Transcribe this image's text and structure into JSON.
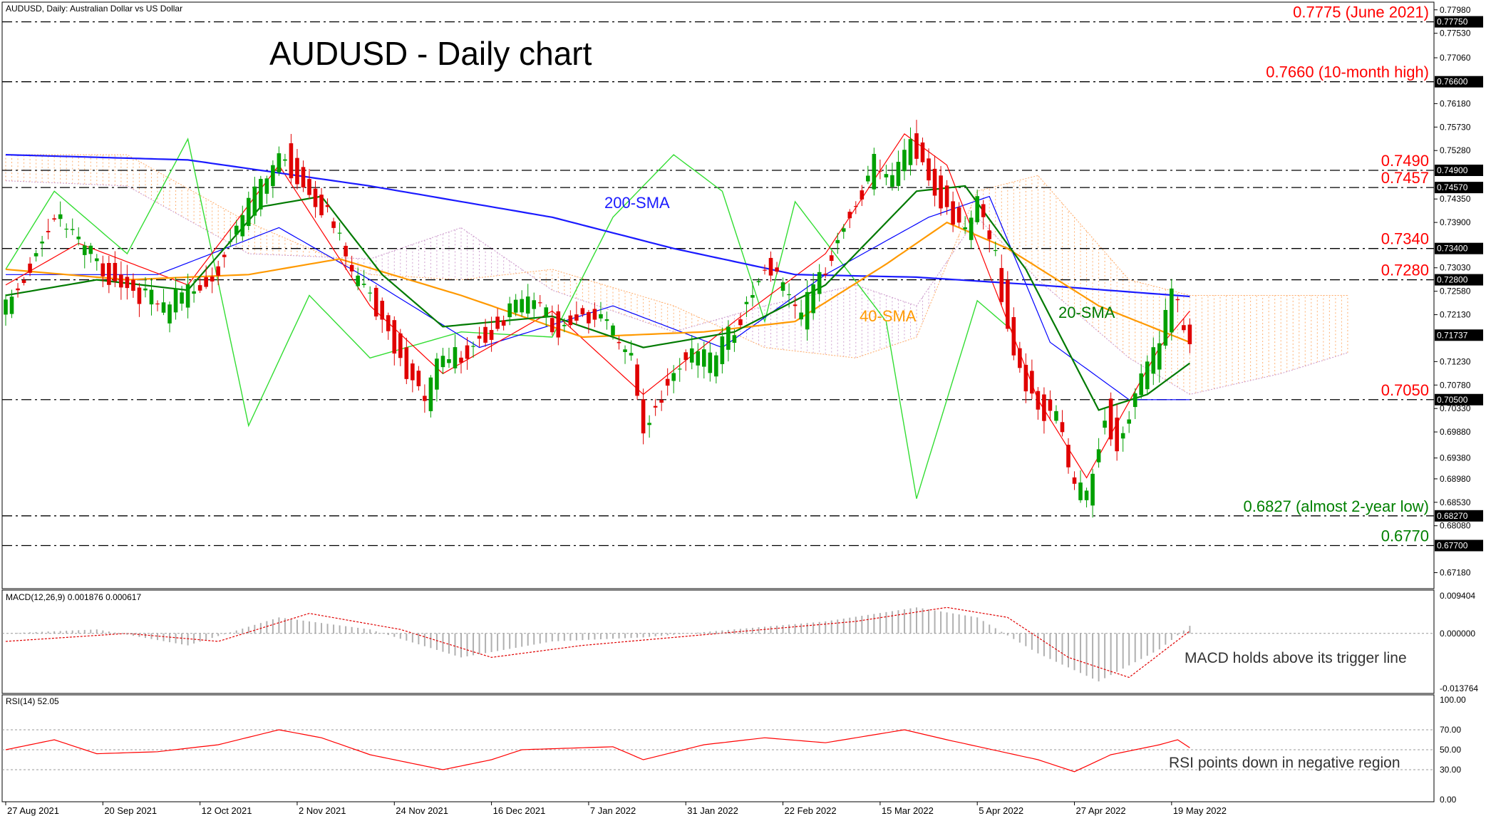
{
  "window": {
    "symbol_line": "AUDUSD, Daily:  Australian Dollar vs US Dollar"
  },
  "title": "AUDUSD - Daily chart",
  "colors": {
    "bull_candle": "#00a000",
    "bear_candle": "#e00000",
    "sma200": "#1a1aff",
    "sma40": "#ff9900",
    "sma20": "#007a00",
    "tenkan": "#ff0000",
    "kijun": "#0000ff",
    "chikou": "#33dd33",
    "cloud_bull": "#cc99cc",
    "cloud_bear": "#ffaa66",
    "level_red": "#ff0000",
    "level_green": "#008000",
    "price_tag": "#000000"
  },
  "price_axis": {
    "min": 0.669,
    "max": 0.781,
    "ticks": [
      "0.77980",
      "0.77750",
      "0.77530",
      "0.77060",
      "0.76600",
      "0.76180",
      "0.75730",
      "0.75280",
      "0.74900",
      "0.74570",
      "0.74350",
      "0.73900",
      "0.73400",
      "0.73030",
      "0.72800",
      "0.72580",
      "0.72130",
      "0.71737",
      "0.71230",
      "0.70780",
      "0.70500",
      "0.70330",
      "0.69880",
      "0.69380",
      "0.68980",
      "0.68530",
      "0.68270",
      "0.68080",
      "0.67700",
      "0.67180"
    ],
    "current_price": "0.71737"
  },
  "levels": [
    {
      "value": 0.7775,
      "label": "0.7775 (June 2021)",
      "tag": "0.77750",
      "color": "red"
    },
    {
      "value": 0.766,
      "label": "0.7660 (10-month high)",
      "tag": "0.76600",
      "color": "red"
    },
    {
      "value": 0.749,
      "label": "0.7490",
      "tag": "0.74900",
      "color": "red"
    },
    {
      "value": 0.7457,
      "label": "0.7457",
      "tag": "0.74570",
      "color": "red"
    },
    {
      "value": 0.734,
      "label": "0.7340",
      "tag": "0.73400",
      "color": "red"
    },
    {
      "value": 0.728,
      "label": "0.7280",
      "tag": "0.72800",
      "color": "red"
    },
    {
      "value": 0.705,
      "label": "0.7050",
      "tag": "0.70500",
      "color": "red"
    },
    {
      "value": 0.6827,
      "label": "0.6827 (almost 2-year low)",
      "tag": "0.68270",
      "color": "green"
    },
    {
      "value": 0.677,
      "label": "0.6770",
      "tag": "0.67700",
      "color": "green"
    }
  ],
  "annotations": {
    "sma200": "200-SMA",
    "sma40": "40-SMA",
    "sma20": "20-SMA"
  },
  "x_axis": {
    "labels": [
      "27 Aug 2021",
      "20 Sep 2021",
      "12 Oct 2021",
      "2 Nov 2021",
      "24 Nov 2021",
      "16 Dec 2021",
      "7 Jan 2022",
      "31 Jan 2022",
      "22 Feb 2022",
      "15 Mar 2022",
      "5 Apr 2022",
      "27 Apr 2022",
      "19 May 2022"
    ]
  },
  "macd": {
    "header": "MACD(12,26,9) 0.001876 0.000617",
    "axis": {
      "min": -0.013764,
      "max": 0.009404
    },
    "ticks": [
      "0.009404",
      "0.000000",
      "-0.013764"
    ],
    "annotation": "MACD holds above its trigger line"
  },
  "rsi": {
    "header": "RSI(14) 52.05",
    "axis": {
      "min": 0,
      "max": 100
    },
    "ticks": [
      "100.00",
      "70.00",
      "50.00",
      "30.00",
      "0.00"
    ],
    "annotation": "RSI points down in negative region"
  },
  "chart_data": {
    "type": "candlestick",
    "symbol": "AUDUSD",
    "timeframe": "Daily",
    "n_bars": 196,
    "close_anchors": [
      [
        0,
        0.725
      ],
      [
        3,
        0.73
      ],
      [
        8,
        0.742
      ],
      [
        12,
        0.736
      ],
      [
        18,
        0.729
      ],
      [
        22,
        0.727
      ],
      [
        26,
        0.723
      ],
      [
        30,
        0.7275
      ],
      [
        34,
        0.73
      ],
      [
        38,
        0.739
      ],
      [
        42,
        0.747
      ],
      [
        46,
        0.753
      ],
      [
        49,
        0.747
      ],
      [
        53,
        0.742
      ],
      [
        57,
        0.73
      ],
      [
        61,
        0.724
      ],
      [
        65,
        0.715
      ],
      [
        69,
        0.705
      ],
      [
        71,
        0.713
      ],
      [
        75,
        0.715
      ],
      [
        79,
        0.719
      ],
      [
        83,
        0.723
      ],
      [
        87,
        0.725
      ],
      [
        91,
        0.72
      ],
      [
        95,
        0.723
      ],
      [
        99,
        0.721
      ],
      [
        103,
        0.713
      ],
      [
        105,
        0.7
      ],
      [
        108,
        0.708
      ],
      [
        112,
        0.715
      ],
      [
        116,
        0.713
      ],
      [
        119,
        0.718
      ],
      [
        122,
        0.725
      ],
      [
        125,
        0.732
      ],
      [
        128,
        0.728
      ],
      [
        131,
        0.722
      ],
      [
        134,
        0.73
      ],
      [
        137,
        0.738
      ],
      [
        140,
        0.745
      ],
      [
        143,
        0.751
      ],
      [
        146,
        0.748
      ],
      [
        149,
        0.756
      ],
      [
        151,
        0.752
      ],
      [
        154,
        0.745
      ],
      [
        158,
        0.738
      ],
      [
        160,
        0.744
      ],
      [
        163,
        0.733
      ],
      [
        166,
        0.715
      ],
      [
        170,
        0.705
      ],
      [
        173,
        0.703
      ],
      [
        176,
        0.688
      ],
      [
        178,
        0.688
      ],
      [
        181,
        0.704
      ],
      [
        183,
        0.697
      ],
      [
        186,
        0.708
      ],
      [
        188,
        0.712
      ],
      [
        190,
        0.717
      ],
      [
        192,
        0.726
      ],
      [
        194,
        0.72
      ],
      [
        195,
        0.7174
      ]
    ],
    "sma200_anchors": [
      [
        0,
        0.752
      ],
      [
        30,
        0.751
      ],
      [
        60,
        0.746
      ],
      [
        90,
        0.74
      ],
      [
        110,
        0.734
      ],
      [
        130,
        0.729
      ],
      [
        150,
        0.7285
      ],
      [
        170,
        0.727
      ],
      [
        195,
        0.7248
      ]
    ],
    "sma40_anchors": [
      [
        0,
        0.73
      ],
      [
        20,
        0.728
      ],
      [
        40,
        0.729
      ],
      [
        55,
        0.732
      ],
      [
        75,
        0.725
      ],
      [
        95,
        0.717
      ],
      [
        115,
        0.718
      ],
      [
        130,
        0.72
      ],
      [
        145,
        0.731
      ],
      [
        155,
        0.739
      ],
      [
        165,
        0.734
      ],
      [
        180,
        0.723
      ],
      [
        195,
        0.716
      ]
    ],
    "sma20_anchors": [
      [
        0,
        0.725
      ],
      [
        15,
        0.728
      ],
      [
        30,
        0.726
      ],
      [
        42,
        0.742
      ],
      [
        52,
        0.744
      ],
      [
        62,
        0.729
      ],
      [
        72,
        0.719
      ],
      [
        90,
        0.721
      ],
      [
        105,
        0.715
      ],
      [
        120,
        0.718
      ],
      [
        135,
        0.727
      ],
      [
        150,
        0.745
      ],
      [
        158,
        0.746
      ],
      [
        168,
        0.73
      ],
      [
        180,
        0.703
      ],
      [
        188,
        0.706
      ],
      [
        195,
        0.712
      ]
    ],
    "ichimoku": {
      "tenkan_anchors": [
        [
          0,
          0.727
        ],
        [
          12,
          0.735
        ],
        [
          30,
          0.727
        ],
        [
          45,
          0.75
        ],
        [
          60,
          0.723
        ],
        [
          72,
          0.71
        ],
        [
          90,
          0.722
        ],
        [
          105,
          0.706
        ],
        [
          120,
          0.72
        ],
        [
          135,
          0.733
        ],
        [
          148,
          0.756
        ],
        [
          155,
          0.75
        ],
        [
          170,
          0.705
        ],
        [
          178,
          0.69
        ],
        [
          190,
          0.715
        ],
        [
          195,
          0.722
        ]
      ],
      "kijun_anchors": [
        [
          0,
          0.729
        ],
        [
          25,
          0.729
        ],
        [
          45,
          0.738
        ],
        [
          60,
          0.728
        ],
        [
          78,
          0.715
        ],
        [
          100,
          0.723
        ],
        [
          118,
          0.715
        ],
        [
          135,
          0.729
        ],
        [
          152,
          0.74
        ],
        [
          162,
          0.744
        ],
        [
          172,
          0.716
        ],
        [
          185,
          0.705
        ],
        [
          195,
          0.705
        ]
      ],
      "chikou_anchors": [
        [
          0,
          0.73
        ],
        [
          8,
          0.745
        ],
        [
          20,
          0.733
        ],
        [
          30,
          0.755
        ],
        [
          40,
          0.7
        ],
        [
          50,
          0.725
        ],
        [
          60,
          0.713
        ],
        [
          75,
          0.718
        ],
        [
          90,
          0.717
        ],
        [
          100,
          0.74
        ],
        [
          110,
          0.752
        ],
        [
          118,
          0.745
        ],
        [
          125,
          0.72
        ],
        [
          130,
          0.743
        ],
        [
          145,
          0.72
        ],
        [
          150,
          0.686
        ],
        [
          160,
          0.724
        ],
        [
          166,
          0.718
        ]
      ],
      "span_a_anchors": [
        [
          0,
          0.747
        ],
        [
          20,
          0.746
        ],
        [
          40,
          0.733
        ],
        [
          60,
          0.732
        ],
        [
          75,
          0.738
        ],
        [
          90,
          0.726
        ],
        [
          110,
          0.718
        ],
        [
          125,
          0.723
        ],
        [
          140,
          0.727
        ],
        [
          150,
          0.723
        ],
        [
          160,
          0.74
        ],
        [
          170,
          0.728
        ],
        [
          185,
          0.713
        ],
        [
          195,
          0.706
        ],
        [
          210,
          0.71
        ],
        [
          221,
          0.714
        ]
      ],
      "span_b_anchors": [
        [
          0,
          0.752
        ],
        [
          20,
          0.752
        ],
        [
          40,
          0.739
        ],
        [
          60,
          0.729
        ],
        [
          75,
          0.728
        ],
        [
          90,
          0.73
        ],
        [
          110,
          0.723
        ],
        [
          125,
          0.715
        ],
        [
          140,
          0.713
        ],
        [
          150,
          0.717
        ],
        [
          160,
          0.745
        ],
        [
          170,
          0.748
        ],
        [
          185,
          0.728
        ],
        [
          195,
          0.725
        ],
        [
          210,
          0.725
        ],
        [
          221,
          0.725
        ]
      ]
    },
    "macd_anchors": [
      [
        0,
        0.0
      ],
      [
        15,
        0.001
      ],
      [
        30,
        -0.003
      ],
      [
        45,
        0.004
      ],
      [
        60,
        0.001
      ],
      [
        75,
        -0.006
      ],
      [
        90,
        -0.002
      ],
      [
        105,
        -0.001
      ],
      [
        120,
        0.001
      ],
      [
        135,
        0.003
      ],
      [
        150,
        0.0065
      ],
      [
        160,
        0.004
      ],
      [
        170,
        -0.005
      ],
      [
        180,
        -0.012
      ],
      [
        190,
        -0.004
      ],
      [
        195,
        0.0019
      ]
    ],
    "macd_signal_anchors": [
      [
        0,
        -0.002
      ],
      [
        20,
        0.0
      ],
      [
        35,
        -0.002
      ],
      [
        50,
        0.005
      ],
      [
        65,
        0.001
      ],
      [
        80,
        -0.006
      ],
      [
        95,
        -0.003
      ],
      [
        110,
        -0.001
      ],
      [
        125,
        0.001
      ],
      [
        140,
        0.003
      ],
      [
        155,
        0.0065
      ],
      [
        165,
        0.004
      ],
      [
        175,
        -0.006
      ],
      [
        185,
        -0.011
      ],
      [
        195,
        0.0006
      ]
    ],
    "rsi_anchors": [
      [
        0,
        50
      ],
      [
        8,
        60
      ],
      [
        15,
        46
      ],
      [
        25,
        48
      ],
      [
        35,
        55
      ],
      [
        45,
        70
      ],
      [
        52,
        62
      ],
      [
        60,
        45
      ],
      [
        72,
        30
      ],
      [
        80,
        40
      ],
      [
        85,
        50
      ],
      [
        100,
        53
      ],
      [
        105,
        40
      ],
      [
        115,
        55
      ],
      [
        125,
        62
      ],
      [
        135,
        57
      ],
      [
        148,
        70
      ],
      [
        155,
        60
      ],
      [
        170,
        40
      ],
      [
        176,
        28
      ],
      [
        182,
        45
      ],
      [
        190,
        55
      ],
      [
        193,
        60
      ],
      [
        195,
        52
      ]
    ]
  }
}
